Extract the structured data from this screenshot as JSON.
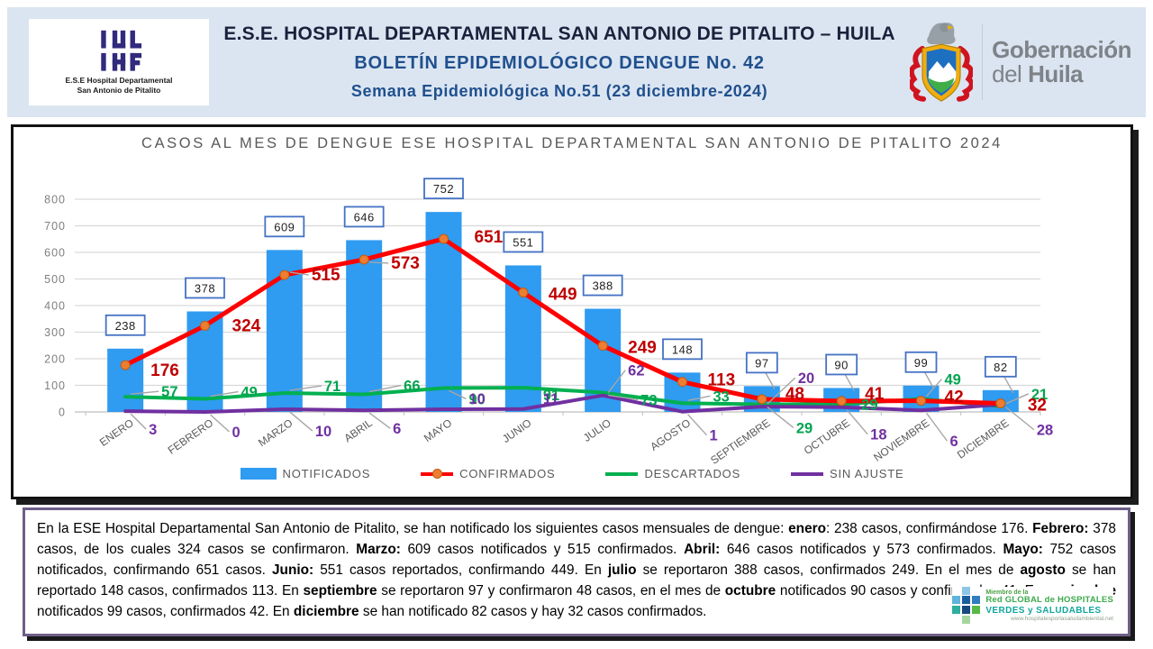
{
  "header": {
    "hospital_logo_caption_1": "E.S.E Hospital Departamental",
    "hospital_logo_caption_2": "San Antonio de Pitalito",
    "title_line1": "E.S.E. HOSPITAL DEPARTAMENTAL SAN ANTONIO DE PITALITO  –  HUILA",
    "title_line2": "BOLETÍN EPIDEMIOLÓGICO DENGUE No. 42",
    "title_line3": "Semana Epidemiológica No.51 (23 diciembre-2024)",
    "gobernacion_line1": "Gobernación",
    "gobernacion_line2_normal": "del ",
    "gobernacion_line2_bold": "Huila"
  },
  "chart_data": {
    "type": "bar",
    "title": "CASOS AL MES DE DENGUE ESE HOSPITAL DEPARTAMENTAL SAN ANTONIO DE PITALITO 2024",
    "categories": [
      "ENERO",
      "FEBRERO",
      "MARZO",
      "ABRIL",
      "MAYO",
      "JUNIO",
      "JULIO",
      "AGOSTO",
      "SEPTIEMBRE",
      "OCTUBRE",
      "NOVIEMBRE",
      "DICIEMBRE"
    ],
    "series": [
      {
        "name": "NOTIFICADOS",
        "type": "bar",
        "color": "#2F9BF1",
        "values": [
          238,
          378,
          609,
          646,
          752,
          551,
          388,
          148,
          97,
          90,
          99,
          82
        ]
      },
      {
        "name": "CONFIRMADOS",
        "type": "line",
        "color": "#FE0000",
        "marker_color": "#ED7D31",
        "label_color": "#C00000",
        "values": [
          176,
          324,
          515,
          573,
          651,
          449,
          249,
          113,
          48,
          41,
          42,
          32
        ]
      },
      {
        "name": "DESCARTADOS",
        "type": "line",
        "color": "#00B050",
        "label_color": "#00A44F",
        "values": [
          57,
          49,
          71,
          66,
          90,
          91,
          73,
          33,
          29,
          29,
          49,
          21
        ]
      },
      {
        "name": "SIN AJUSTE",
        "type": "line",
        "color": "#7030A0",
        "label_color": "#7030A0",
        "values": [
          3,
          0,
          10,
          6,
          10,
          11,
          62,
          1,
          20,
          18,
          6,
          28
        ]
      }
    ],
    "xlabel": "",
    "ylabel": "",
    "ylim": [
      0,
      800
    ],
    "ytick_step": 100,
    "grid": true,
    "legend_position": "bottom",
    "bar_label_box_border": "#4472C4"
  },
  "summary": {
    "segments": [
      {
        "t": "En la ESE Hospital Departamental San Antonio de Pitalito, se han notificado los siguientes casos mensuales de dengue: ",
        "b": false
      },
      {
        "t": "enero",
        "b": true
      },
      {
        "t": ": 238 casos,  confirmándose 176. ",
        "b": false
      },
      {
        "t": "Febrero:",
        "b": true
      },
      {
        "t": " 378 casos, de los cuales 324 casos se confirmaron. ",
        "b": false
      },
      {
        "t": "Marzo:",
        "b": true
      },
      {
        "t": " 609 casos notificados  y 515 confirmados. ",
        "b": false
      },
      {
        "t": "Abril:",
        "b": true
      },
      {
        "t": " 646 casos notificados y 573 confirmados. ",
        "b": false
      },
      {
        "t": "Mayo:",
        "b": true
      },
      {
        "t": " 752 casos notificados, confirmando  651 casos. ",
        "b": false
      },
      {
        "t": "Junio:",
        "b": true
      },
      {
        "t": " 551 casos reportados, confirmando 449. En ",
        "b": false
      },
      {
        "t": "julio",
        "b": true
      },
      {
        "t": " se reportaron 388 casos, confirmados 249. En el mes de ",
        "b": false
      },
      {
        "t": "agosto",
        "b": true
      },
      {
        "t": " se han reportado 148 casos, confirmados 113. En ",
        "b": false
      },
      {
        "t": "septiembre",
        "b": true
      },
      {
        "t": " se reportaron 97 y confirmaron 48 casos, en el mes de ",
        "b": false
      },
      {
        "t": "octubre",
        "b": true
      },
      {
        "t": " notificados 90 casos y confirmados 41. En ",
        "b": false
      },
      {
        "t": "noviembre",
        "b": true
      },
      {
        "t": " notificados 99 casos, confirmados 42. En ",
        "b": false
      },
      {
        "t": "diciembre",
        "b": true
      },
      {
        "t": " se han notificado  82 casos y hay 32 casos confirmados.",
        "b": false
      }
    ]
  },
  "membership_logo": {
    "line0": "Miembro de la",
    "line1": "Red GLOBAL de HOSPITALES",
    "line2": "VERDES y SALUDABLES",
    "url": "www.hospitalesporlasaludambiental.net"
  }
}
